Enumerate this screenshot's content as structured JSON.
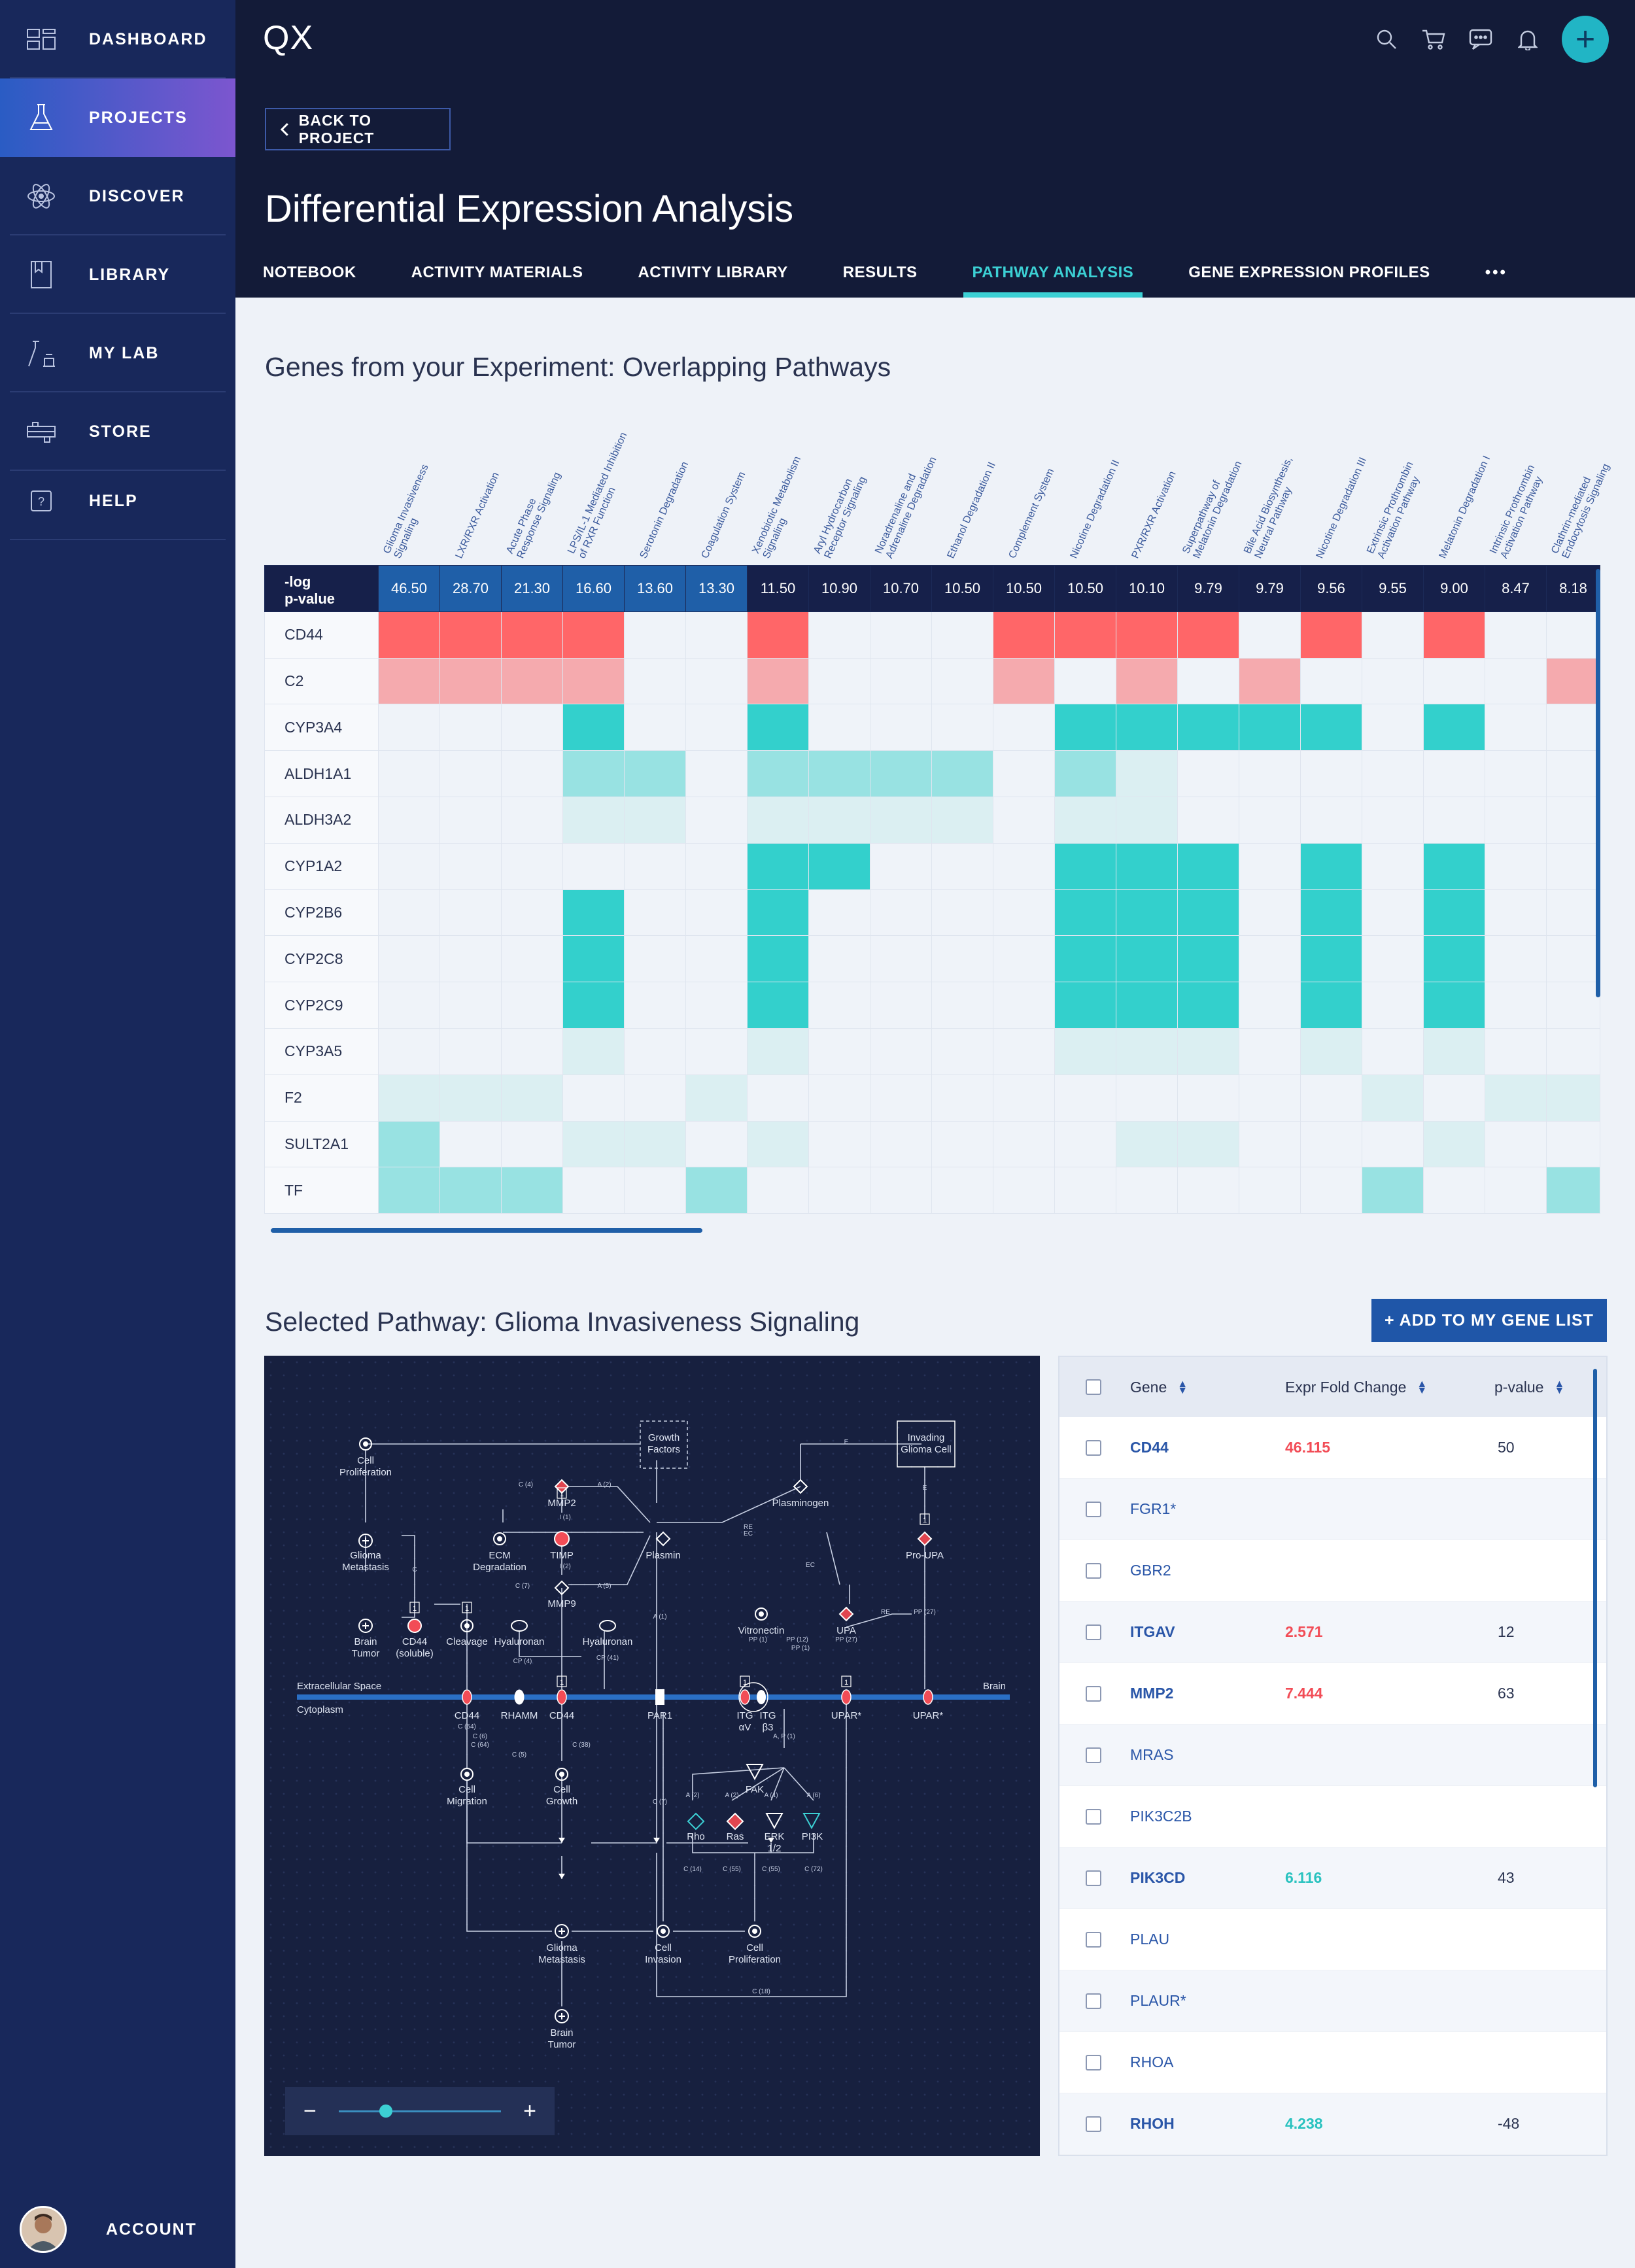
{
  "sidebar": {
    "items": [
      {
        "label": "DASHBOARD",
        "icon": "dashboard-icon"
      },
      {
        "label": "PROJECTS",
        "icon": "flask-icon"
      },
      {
        "label": "DISCOVER",
        "icon": "atom-icon"
      },
      {
        "label": "LIBRARY",
        "icon": "book-icon"
      },
      {
        "label": "MY LAB",
        "icon": "lab-icon"
      },
      {
        "label": "STORE",
        "icon": "store-icon"
      },
      {
        "label": "HELP",
        "icon": "help-icon"
      }
    ],
    "account_label": "ACCOUNT"
  },
  "header": {
    "logo": "QX",
    "back_label": "BACK TO PROJECT",
    "title": "Differential Expression Analysis",
    "tabs": [
      "NOTEBOOK",
      "ACTIVITY MATERIALS",
      "ACTIVITY LIBRARY",
      "RESULTS",
      "PATHWAY ANALYSIS",
      "GENE EXPRESSION PROFILES",
      "•••"
    ],
    "active_tab": "PATHWAY ANALYSIS"
  },
  "heatmap": {
    "title": "Genes from your Experiment: Overlapping Pathways",
    "pvalue_label": "-log\np-value",
    "pathways": [
      "Glioma Invasiveness\nSignaling",
      "LXR/RXR Activation",
      "Acute Phase\nResponse Signaling",
      "LPS/IL-1 Mediated Inhibition\nof RXR Function",
      "Serotonin Degradation",
      "Coagulation System",
      "Xenobiotic Metabolism\nSignaling",
      "Aryl Hydrocarbon\nReceptor Signaling",
      "Noradrenaline and\nAdrenaline Degradation",
      "Ethanol Degradation II",
      "Complement System",
      "Nicotine Degradation II",
      "PXR/RXR Activation",
      "Superpathway of\nMelatonin Degradation",
      "Bile Acid Biosynthesis,\nNeutral Pathway",
      "Nicotine Degradation III",
      "Extrinsic Prothrombin\nActivation Pathway",
      "Melatonin Degradation I",
      "Intrinsic Prothrombin\nActivation Pathway",
      "Clathrin-mediated\nEndocytosis Signaling"
    ],
    "pvalues": [
      "46.50",
      "28.70",
      "21.30",
      "16.60",
      "13.60",
      "13.30",
      "11.50",
      "10.90",
      "10.70",
      "10.50",
      "10.50",
      "10.50",
      "10.10",
      "9.79",
      "9.79",
      "9.56",
      "9.55",
      "9.00",
      "8.47",
      "8.18"
    ],
    "genes": [
      "CD44",
      "C2",
      "CYP3A4",
      "ALDH1A1",
      "ALDH3A2",
      "CYP1A2",
      "CYP2B6",
      "CYP2C8",
      "CYP2C9",
      "CYP3A5",
      "F2",
      "SULT2A1",
      "TF"
    ],
    "levels": [
      [
        "r3",
        "r3",
        "r3",
        "r3",
        "0",
        "0",
        "r3",
        "0",
        "0",
        "0",
        "r3",
        "r3",
        "r3",
        "r3",
        "0",
        "r3",
        "0",
        "r3",
        "0",
        "0"
      ],
      [
        "r2",
        "r2",
        "r2",
        "r2",
        "0",
        "0",
        "r2",
        "0",
        "0",
        "0",
        "r2",
        "0",
        "r2",
        "0",
        "r2",
        "0",
        "0",
        "0",
        "0",
        "r2"
      ],
      [
        "0",
        "0",
        "0",
        "t3",
        "0",
        "0",
        "t3",
        "0",
        "0",
        "0",
        "0",
        "t3",
        "t3",
        "t3",
        "t3",
        "t3",
        "0",
        "t3",
        "0",
        "0"
      ],
      [
        "0",
        "0",
        "0",
        "t2",
        "t2",
        "0",
        "t2",
        "t2",
        "t2",
        "t2",
        "0",
        "t2",
        "t1",
        "0",
        "0",
        "0",
        "0",
        "0",
        "0",
        "0"
      ],
      [
        "0",
        "0",
        "0",
        "t1",
        "t1",
        "0",
        "t1",
        "t1",
        "t1",
        "t1",
        "0",
        "t1",
        "t1",
        "0",
        "0",
        "0",
        "0",
        "0",
        "0",
        "0"
      ],
      [
        "0",
        "0",
        "0",
        "0",
        "0",
        "0",
        "t3",
        "t3",
        "0",
        "0",
        "0",
        "t3",
        "t3",
        "t3",
        "0",
        "t3",
        "0",
        "t3",
        "0",
        "0"
      ],
      [
        "0",
        "0",
        "0",
        "t3",
        "0",
        "0",
        "t3",
        "0",
        "0",
        "0",
        "0",
        "t3",
        "t3",
        "t3",
        "0",
        "t3",
        "0",
        "t3",
        "0",
        "0"
      ],
      [
        "0",
        "0",
        "0",
        "t3",
        "0",
        "0",
        "t3",
        "0",
        "0",
        "0",
        "0",
        "t3",
        "t3",
        "t3",
        "0",
        "t3",
        "0",
        "t3",
        "0",
        "0"
      ],
      [
        "0",
        "0",
        "0",
        "t3",
        "0",
        "0",
        "t3",
        "0",
        "0",
        "0",
        "0",
        "t3",
        "t3",
        "t3",
        "0",
        "t3",
        "0",
        "t3",
        "0",
        "0"
      ],
      [
        "0",
        "0",
        "0",
        "t1",
        "0",
        "0",
        "t1",
        "0",
        "0",
        "0",
        "0",
        "t1",
        "t1",
        "t1",
        "0",
        "t1",
        "0",
        "t1",
        "0",
        "0"
      ],
      [
        "t1",
        "t1",
        "t1",
        "0",
        "0",
        "t1",
        "0",
        "0",
        "0",
        "0",
        "0",
        "0",
        "0",
        "0",
        "0",
        "0",
        "t1",
        "0",
        "t1",
        "t1"
      ],
      [
        "t2",
        "0",
        "0",
        "t1",
        "t1",
        "0",
        "t1",
        "0",
        "0",
        "0",
        "0",
        "0",
        "t1",
        "t1",
        "0",
        "0",
        "0",
        "t1",
        "0",
        "0"
      ],
      [
        "t2",
        "t2",
        "t2",
        "0",
        "0",
        "t2",
        "0",
        "0",
        "0",
        "0",
        "0",
        "0",
        "0",
        "0",
        "0",
        "0",
        "t2",
        "0",
        "0",
        "t2"
      ]
    ]
  },
  "selected": {
    "title": "Selected Pathway: Glioma Invasiveness Signaling",
    "add_button": "+ ADD TO MY GENE LIST"
  },
  "diagram": {
    "labels": {
      "cell_prolif_top": "Cell\nProliferation",
      "growth_factors": "Growth\nFactors",
      "invading": "Invading\nGlioma Cell",
      "mmp2": "MMP2",
      "plasminogen": "Plasminogen",
      "glioma_meta_top": "Glioma\nMetastasis",
      "ecm": "ECM\nDegradation",
      "timp": "TIMP",
      "plasmin": "Plasmin",
      "pro_upa": "Pro-UPA",
      "mmp9": "MMP9",
      "brain_tumor_top": "Brain\nTumor",
      "cd44s": "CD44\n(soluble)",
      "cleavage": "Cleavage",
      "hyaluronan1": "Hyaluronan",
      "hyaluronan2": "Hyaluronan",
      "vitronectin": "Vitronectin",
      "upa": "UPA",
      "extracellular": "Extracellular Space",
      "cytoplasm": "Cytoplasm",
      "brain": "Brain",
      "cd44_a": "CD44",
      "rhamm": "RHAMM",
      "cd44_b": "CD44",
      "par1": "PAR1",
      "itg_av": "ITG\nαV",
      "itg_b3": "ITG\nβ3",
      "upar1": "UPAR*",
      "upar2": "UPAR*",
      "fak": "FAK",
      "cell_migration": "Cell\nMigration",
      "cell_growth": "Cell\nGrowth",
      "rho": "Rho",
      "ras": "Ras",
      "erk": "ERK\n1/2",
      "pi3k": "PI3K",
      "glioma_meta_bot": "Glioma\nMetastasis",
      "cell_invasion": "Cell\nInvasion",
      "cell_prolif_bot": "Cell\nProliferation",
      "brain_tumor_bot": "Brain\nTumor"
    },
    "edge_labels": [
      "C (4)",
      "A (2)",
      "I (1)",
      "I (2)",
      "A (5)",
      "C (7)",
      "RE",
      "EC",
      "E",
      "E",
      "EC",
      "RE",
      "PP (27)",
      "A (1)",
      "CP (4)",
      "CP (41)",
      "PP (1)",
      "PP (12)",
      "PP (1)",
      "PP (27)",
      "C (64)",
      "C (6)",
      "C (64)",
      "C (5)",
      "C (38)",
      "A, P (1)",
      "C (7)",
      "A (2)",
      "A (2)",
      "A (4)",
      "A (6)",
      "C (14)",
      "C (55)",
      "C (55)",
      "C (72)",
      "C (18)",
      "C"
    ],
    "badge": "1",
    "zoom_minus": "−",
    "zoom_plus": "+",
    "zoom_level": 0.25
  },
  "gene_table": {
    "headers": {
      "gene": "Gene",
      "fold": "Expr Fold Change",
      "pvalue": "p-value"
    },
    "rows": [
      {
        "gene": "CD44",
        "fold": "46.115",
        "p": "50",
        "bold": true,
        "color": "#f24c56"
      },
      {
        "gene": "FGR1*",
        "fold": "",
        "p": "",
        "bold": false,
        "color": ""
      },
      {
        "gene": "GBR2",
        "fold": "",
        "p": "",
        "bold": false,
        "color": ""
      },
      {
        "gene": "ITGAV",
        "fold": "2.571",
        "p": "12",
        "bold": true,
        "color": "#f24c56"
      },
      {
        "gene": "MMP2",
        "fold": "7.444",
        "p": "63",
        "bold": true,
        "color": "#f24c56"
      },
      {
        "gene": "MRAS",
        "fold": "",
        "p": "",
        "bold": false,
        "color": ""
      },
      {
        "gene": "PIK3C2B",
        "fold": "",
        "p": "",
        "bold": false,
        "color": ""
      },
      {
        "gene": "PIK3CD",
        "fold": "6.116",
        "p": "43",
        "bold": true,
        "color": "#29c2bf"
      },
      {
        "gene": "PLAU",
        "fold": "",
        "p": "",
        "bold": false,
        "color": ""
      },
      {
        "gene": "PLAUR*",
        "fold": "",
        "p": "",
        "bold": false,
        "color": ""
      },
      {
        "gene": "RHOA",
        "fold": "",
        "p": "",
        "bold": false,
        "color": ""
      },
      {
        "gene": "RHOH",
        "fold": "4.238",
        "p": "-48",
        "bold": true,
        "color": "#29c2bf"
      }
    ]
  },
  "colors": {
    "sidebar": "#18285b",
    "header": "#131b38",
    "accent": "#3cd0d4",
    "primary": "#1f56a8",
    "red": "#ff6668",
    "teal": "#33d0cc"
  }
}
